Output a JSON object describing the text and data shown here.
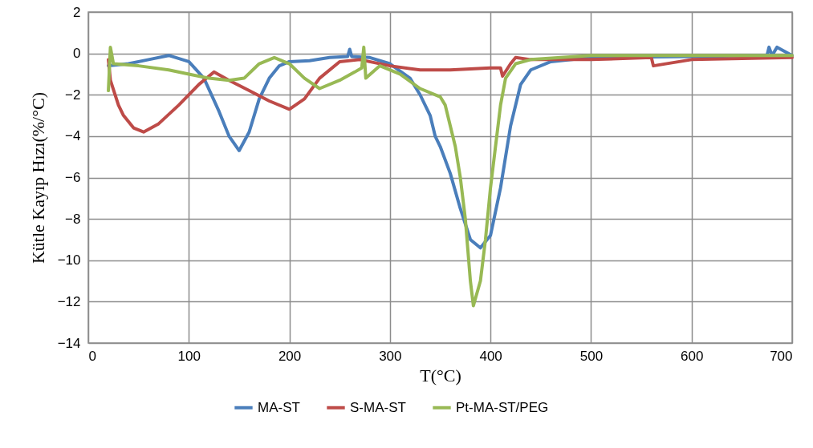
{
  "chart_data": {
    "type": "line",
    "xlabel": "T(°C)",
    "ylabel": "Kütle Kayıp Hızı(%/°C)",
    "xlim": [
      0,
      700
    ],
    "xticks": [
      0,
      100,
      200,
      300,
      400,
      500,
      600,
      700
    ],
    "ylim": [
      -14,
      2
    ],
    "yticks": [
      -14,
      -12,
      -10,
      -8,
      -6,
      -4,
      -2,
      0,
      2
    ],
    "grid": true,
    "legend": "bottom",
    "line_style": "solid",
    "series": [
      {
        "name": "MA-ST",
        "color": "#4a7ebb",
        "x": [
          20,
          40,
          60,
          80,
          100,
          115,
          130,
          140,
          150,
          160,
          170,
          180,
          190,
          200,
          220,
          240,
          258,
          260,
          262,
          280,
          300,
          320,
          330,
          340,
          345,
          350,
          360,
          370,
          380,
          390,
          400,
          410,
          420,
          430,
          440,
          460,
          500,
          600,
          675,
          677,
          680,
          685,
          700
        ],
        "values": [
          -0.6,
          -0.5,
          -0.3,
          -0.1,
          -0.4,
          -1.2,
          -2.8,
          -4.0,
          -4.7,
          -3.8,
          -2.2,
          -1.2,
          -0.6,
          -0.4,
          -0.35,
          -0.2,
          -0.15,
          0.2,
          -0.15,
          -0.2,
          -0.5,
          -1.2,
          -2.0,
          -3.0,
          -4.0,
          -4.5,
          -5.8,
          -7.5,
          -9.0,
          -9.4,
          -8.8,
          -6.5,
          -3.5,
          -1.5,
          -0.8,
          -0.4,
          -0.2,
          -0.15,
          -0.1,
          0.3,
          -0.1,
          0.3,
          -0.1
        ]
      },
      {
        "name": "S-MA-ST",
        "color": "#be4b48",
        "x": [
          20,
          22,
          30,
          35,
          45,
          55,
          70,
          90,
          110,
          125,
          140,
          160,
          180,
          200,
          215,
          230,
          250,
          270,
          300,
          330,
          360,
          400,
          410,
          412,
          420,
          425,
          440,
          500,
          560,
          562,
          600,
          700
        ],
        "values": [
          -0.3,
          -1.3,
          -2.5,
          -3.0,
          -3.6,
          -3.8,
          -3.4,
          -2.5,
          -1.5,
          -0.9,
          -1.3,
          -1.8,
          -2.3,
          -2.7,
          -2.2,
          -1.2,
          -0.4,
          -0.3,
          -0.6,
          -0.8,
          -0.8,
          -0.7,
          -0.7,
          -1.1,
          -0.5,
          -0.2,
          -0.3,
          -0.3,
          -0.2,
          -0.6,
          -0.3,
          -0.2
        ]
      },
      {
        "name": "Pt-MA-ST/PEG",
        "color": "#98b954",
        "x": [
          20,
          22,
          25,
          50,
          80,
          100,
          120,
          140,
          155,
          170,
          185,
          200,
          215,
          230,
          250,
          265,
          272,
          274,
          276,
          290,
          310,
          330,
          350,
          355,
          360,
          365,
          370,
          375,
          380,
          383,
          390,
          395,
          400,
          405,
          410,
          415,
          425,
          440,
          500,
          700
        ],
        "values": [
          -1.8,
          0.3,
          -0.5,
          -0.6,
          -0.8,
          -1.0,
          -1.2,
          -1.3,
          -1.2,
          -0.5,
          -0.2,
          -0.5,
          -1.2,
          -1.7,
          -1.3,
          -0.9,
          -0.7,
          0.3,
          -1.2,
          -0.6,
          -1.0,
          -1.7,
          -2.1,
          -2.5,
          -3.5,
          -4.5,
          -6.0,
          -8.0,
          -11.0,
          -12.2,
          -11.0,
          -9.0,
          -6.5,
          -4.5,
          -2.5,
          -1.2,
          -0.5,
          -0.3,
          -0.1,
          -0.1
        ]
      }
    ]
  }
}
